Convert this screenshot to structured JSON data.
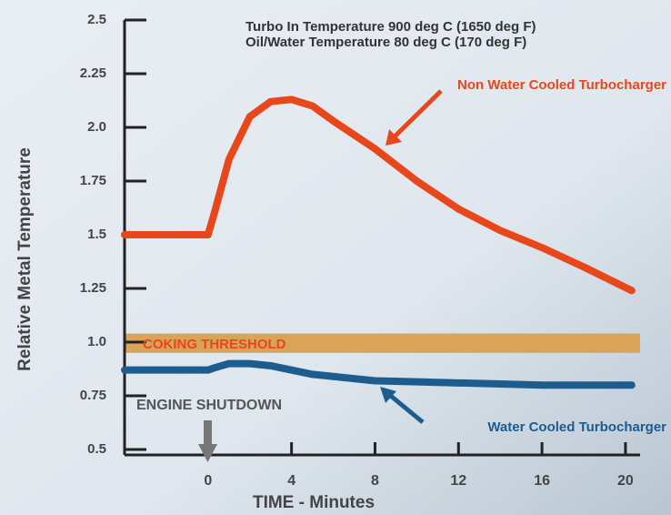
{
  "chart_data": {
    "type": "line",
    "ylabel": "Relative Metal Temperature",
    "xlabel": "TIME - Minutes",
    "annotations": [
      "Turbo In Temperature 900 deg C (1650 deg F)",
      "Oil/Water Temperature 80 deg C (170 deg F)",
      "COKING THRESHOLD",
      "ENGINE SHUTDOWN"
    ],
    "threshold_band": [
      0.95,
      1.04
    ],
    "threshold_color": "#d9a35a",
    "x": [
      -4,
      0,
      0.3,
      1,
      2,
      3,
      4,
      5,
      6,
      8,
      10,
      12,
      14,
      16,
      18,
      20.3
    ],
    "series": [
      {
        "name": "Non Water Cooled Turbocharger",
        "color": "#e8471c",
        "values": [
          1.5,
          1.5,
          1.6,
          1.85,
          2.05,
          2.12,
          2.13,
          2.1,
          2.03,
          1.9,
          1.75,
          1.62,
          1.52,
          1.44,
          1.35,
          1.24
        ]
      },
      {
        "name": "Water Cooled Turbocharger",
        "color": "#1c5c8e",
        "values": [
          0.87,
          0.87,
          0.88,
          0.9,
          0.9,
          0.89,
          0.87,
          0.85,
          0.84,
          0.82,
          0.815,
          0.81,
          0.805,
          0.8,
          0.8,
          0.8
        ]
      }
    ],
    "xlim": [
      -4,
      20.7
    ],
    "xticks": [
      0,
      4,
      8,
      12,
      16,
      20
    ],
    "ylim": [
      0.5,
      2.5
    ],
    "yticks": [
      0.5,
      0.75,
      {
        "value": 1,
        "label": "1.0"
      },
      1.25,
      1.5,
      1.75,
      {
        "value": 2,
        "label": "2.0"
      },
      2.25,
      2.5
    ]
  }
}
